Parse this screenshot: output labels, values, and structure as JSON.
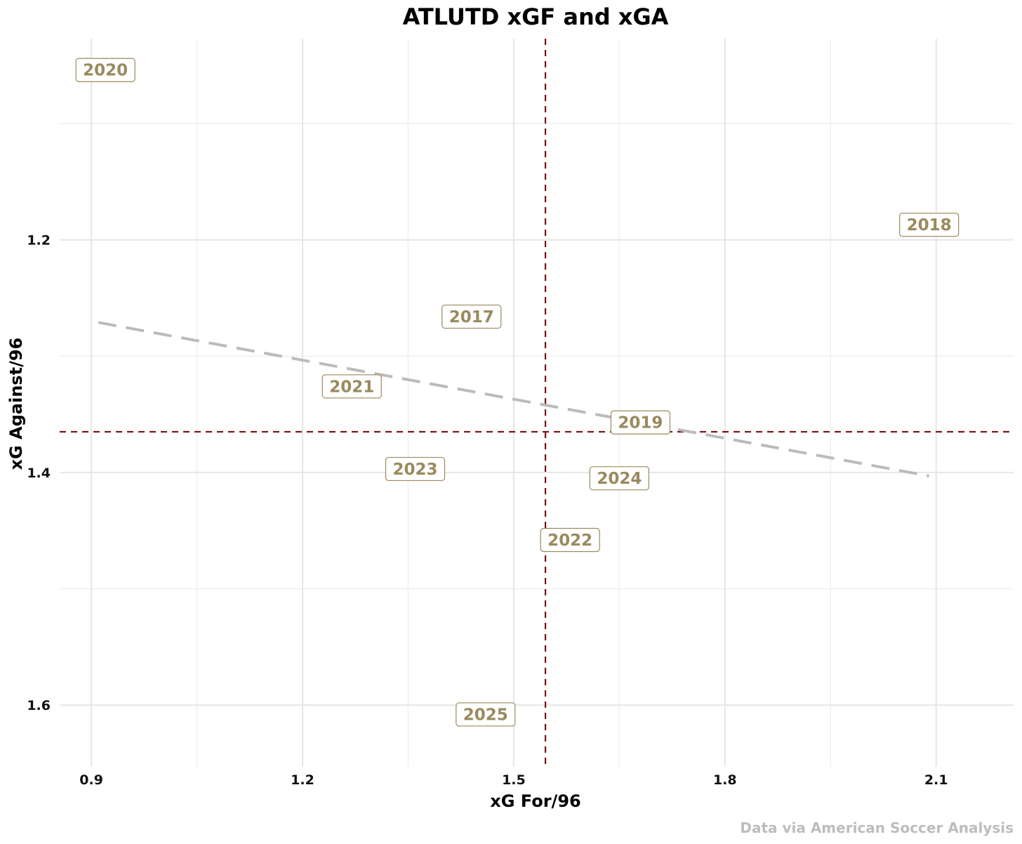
{
  "chart_data": {
    "type": "scatter",
    "title": "ATLUTD xGF and xGA",
    "xlabel": "xG For/96",
    "ylabel": "xG Against/96",
    "caption": "Data via American Soccer Analysis",
    "xlim": [
      0.855,
      2.21
    ],
    "ylim": [
      1.653,
      1.027
    ],
    "y_reversed": true,
    "x_ticks": [
      0.9,
      1.2,
      1.5,
      1.8,
      2.1
    ],
    "x_tick_labels": [
      "0.9",
      "1.2",
      "1.5",
      "1.8",
      "2.1"
    ],
    "y_ticks": [
      1.2,
      1.4,
      1.6
    ],
    "y_tick_labels": [
      "1.2",
      "1.4",
      "1.6"
    ],
    "x_minor_ticks": [
      1.05,
      1.35,
      1.65,
      1.95
    ],
    "y_minor_ticks": [
      1.1,
      1.3,
      1.5
    ],
    "grid": true,
    "points": [
      {
        "label": "2017",
        "x": 1.44,
        "y": 1.266
      },
      {
        "label": "2018",
        "x": 2.09,
        "y": 1.187
      },
      {
        "label": "2019",
        "x": 1.68,
        "y": 1.357
      },
      {
        "label": "2020",
        "x": 0.92,
        "y": 1.054
      },
      {
        "label": "2021",
        "x": 1.27,
        "y": 1.326
      },
      {
        "label": "2022",
        "x": 1.58,
        "y": 1.458
      },
      {
        "label": "2023",
        "x": 1.36,
        "y": 1.397
      },
      {
        "label": "2024",
        "x": 1.65,
        "y": 1.405
      },
      {
        "label": "2025",
        "x": 1.46,
        "y": 1.608
      }
    ],
    "reference_lines": {
      "vertical_x": 1.545,
      "horizontal_y": 1.365,
      "color": "#7a1010"
    },
    "trend_line": {
      "x": [
        0.91,
        2.09
      ],
      "y": [
        1.271,
        1.403
      ],
      "color": "#bbbbbb"
    },
    "label_color": "#9a8a5e"
  }
}
